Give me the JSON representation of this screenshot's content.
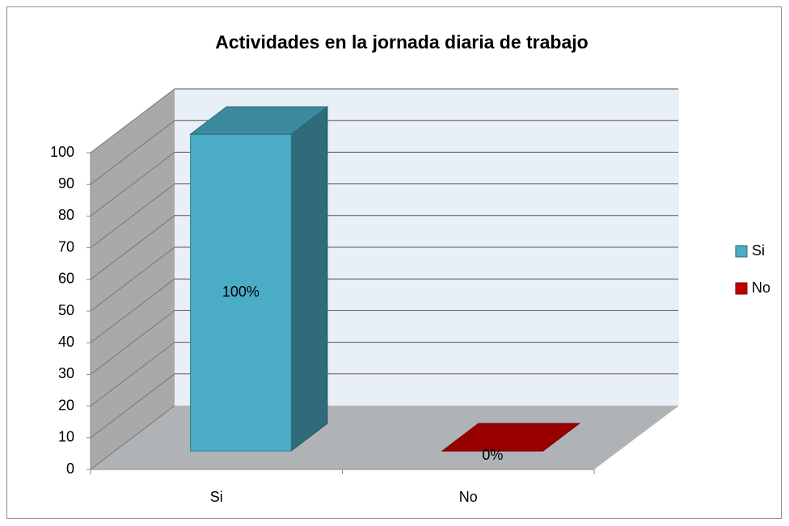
{
  "chart_data": {
    "type": "bar3d",
    "title": "Actividades en la jornada diaria de trabajo",
    "categories": [
      "Si",
      "No"
    ],
    "values": [
      100,
      0
    ],
    "value_labels": [
      "100%",
      "0%"
    ],
    "colors": [
      "#4bacc6",
      "#c00000"
    ],
    "ylim": [
      0,
      100
    ],
    "yticks": [
      0,
      10,
      20,
      30,
      40,
      50,
      60,
      70,
      80,
      90,
      100
    ],
    "grid": true,
    "legend": "right"
  }
}
